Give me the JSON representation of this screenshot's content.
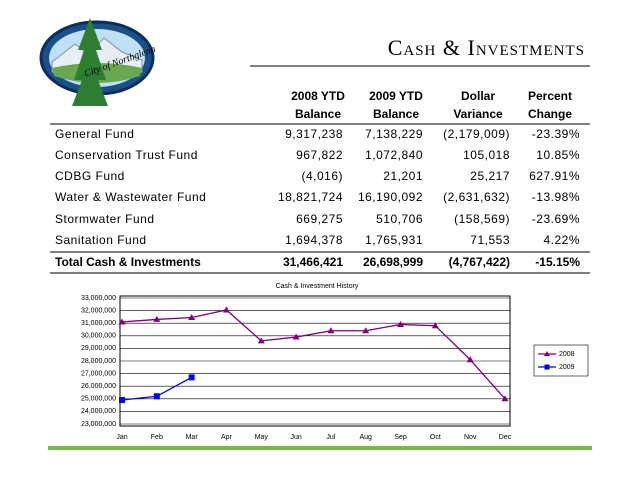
{
  "logo": "City of Northglenn",
  "header": {
    "title": "Cash & Investments"
  },
  "table": {
    "columns": [
      [
        "2008 YTD",
        "Balance"
      ],
      [
        "2009 YTD",
        "Balance"
      ],
      [
        "Dollar",
        "Variance"
      ],
      [
        "Percent",
        "Change"
      ]
    ],
    "rows": [
      [
        "General Fund",
        "9,317,238",
        "7,138,229",
        "(2,179,009)",
        "-23.39%"
      ],
      [
        "Conservation Trust Fund",
        "967,822",
        "1,072,840",
        "105,018",
        "10.85%"
      ],
      [
        "CDBG Fund",
        "(4,016)",
        "21,201",
        "25,217",
        "627.91%"
      ],
      [
        "Water & Wastewater Fund",
        "18,821,724",
        "16,190,092",
        "(2,631,632)",
        "-13.98%"
      ],
      [
        "Stormwater Fund",
        "669,275",
        "510,706",
        "(158,569)",
        "-23.69%"
      ],
      [
        "Sanitation Fund",
        "1,694,378",
        "1,765,931",
        "71,553",
        "4.22%"
      ]
    ],
    "total": [
      "Total Cash & Investments",
      "31,466,421",
      "26,698,999",
      "(4,767,422)",
      "-15.15%"
    ]
  },
  "chart_data": {
    "type": "line",
    "title": "Cash & Investment History",
    "categories": [
      "Jan",
      "Feb",
      "Mar",
      "Apr",
      "May",
      "Jun",
      "Jul",
      "Aug",
      "Sep",
      "Oct",
      "Nov",
      "Dec"
    ],
    "series": [
      {
        "name": "2008",
        "color": "#800080",
        "marker": "triangle",
        "values": [
          31100000,
          31300000,
          31450000,
          32050000,
          29600000,
          29900000,
          30400000,
          30400000,
          30900000,
          30800000,
          28100000,
          25000000
        ]
      },
      {
        "name": "2009",
        "color": "#0000ff",
        "marker": "square",
        "values": [
          24900000,
          25200000,
          26700000,
          null,
          null,
          null,
          null,
          null,
          null,
          null,
          null,
          null
        ]
      }
    ],
    "ylim": [
      23000000,
      33000000
    ],
    "yticks": [
      {
        "value": 23000000,
        "label": "23,000,000"
      },
      {
        "value": 24000000,
        "label": "24,000,000"
      },
      {
        "value": 25000000,
        "label": "25,000,000"
      },
      {
        "value": 26000000,
        "label": "26,000,000"
      },
      {
        "value": 27000000,
        "label": "27,000,000"
      },
      {
        "value": 28000000,
        "label": "28,000,000"
      },
      {
        "value": 29000000,
        "label": "29,000,000"
      },
      {
        "value": 30000000,
        "label": "30,000,000"
      },
      {
        "value": 31000000,
        "label": "31,000,000"
      },
      {
        "value": 32000000,
        "label": "32,000,000"
      },
      {
        "value": 33000000,
        "label": "33,000,000"
      }
    ],
    "grid": true,
    "legend": "right"
  }
}
